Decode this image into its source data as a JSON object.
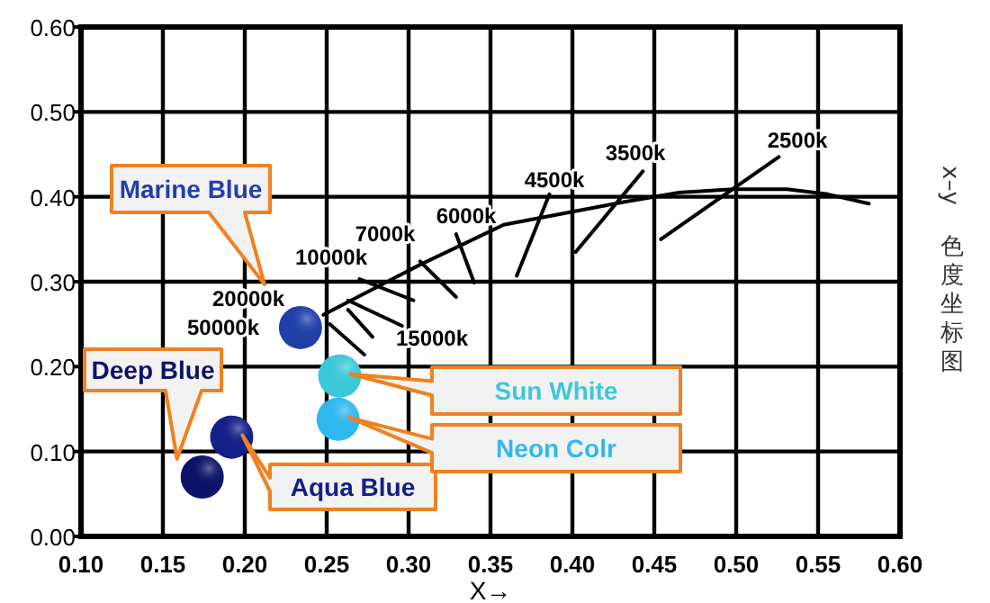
{
  "chart_data": {
    "type": "scatter",
    "xlabel": "X→",
    "xlim": [
      0.1,
      0.6
    ],
    "ylim": [
      0,
      0.6
    ],
    "xticks": [
      {
        "value": 0.1,
        "label": "0.10"
      },
      {
        "value": 0.15,
        "label": "0.15"
      },
      {
        "value": 0.2,
        "label": "0.20"
      },
      {
        "value": 0.25,
        "label": "0.25"
      },
      {
        "value": 0.3,
        "label": "0.30"
      },
      {
        "value": 0.35,
        "label": "0.35"
      },
      {
        "value": 0.4,
        "label": "0.40"
      },
      {
        "value": 0.45,
        "label": "0.45"
      },
      {
        "value": 0.5,
        "label": "0.50"
      },
      {
        "value": 0.55,
        "label": "0.55"
      },
      {
        "value": 0.6,
        "label": "0.60"
      }
    ],
    "yticks": [
      {
        "value": 0,
        "label": "0.00"
      },
      {
        "value": 0.1,
        "label": "0.10"
      },
      {
        "value": 0.2,
        "label": "0.20"
      },
      {
        "value": 0.3,
        "label": "0.30"
      },
      {
        "value": 0.4,
        "label": "0.40"
      },
      {
        "value": 0.5,
        "label": "0.50"
      },
      {
        "value": 0.6,
        "label": "0.60"
      }
    ],
    "grid": true,
    "marker": "circle",
    "series": [
      {
        "name": "Marine Blue",
        "color": "#2040a8",
        "x": [
          0.234
        ],
        "values": [
          0.246
        ]
      },
      {
        "name": "Deep Blue",
        "color": "#0c1468",
        "x": [
          0.174
        ],
        "values": [
          0.07
        ]
      },
      {
        "name": "Aqua Blue",
        "color": "#142088",
        "x": [
          0.192
        ],
        "values": [
          0.117
        ]
      },
      {
        "name": "Sun White",
        "color": "#3cc8d8",
        "x": [
          0.258
        ],
        "values": [
          0.189
        ]
      },
      {
        "name": "Neon Colr",
        "color": "#30b8f0",
        "x": [
          0.257
        ],
        "values": [
          0.138
        ]
      },
      {
        "type": "line",
        "marker": "none",
        "color": "#000000",
        "x": [
          0.248,
          0.292,
          0.307,
          0.358,
          0.432,
          0.465,
          0.498,
          0.531,
          0.556,
          0.581
        ],
        "values": [
          0.261,
          0.305,
          0.32,
          0.367,
          0.394,
          0.405,
          0.409,
          0.409,
          0.403,
          0.392
        ]
      },
      {
        "type": "line",
        "marker": "none",
        "color": "#000000",
        "x": [
          0.252,
          0.273
        ],
        "values": [
          0.25,
          0.214
        ]
      },
      {
        "type": "line",
        "marker": "none",
        "color": "#000000",
        "x": [
          0.263,
          0.278
        ],
        "values": [
          0.267,
          0.235
        ]
      },
      {
        "type": "line",
        "marker": "none",
        "color": "#000000",
        "x": [
          0.263,
          0.296
        ],
        "values": [
          0.278,
          0.248
        ]
      },
      {
        "type": "line",
        "marker": "none",
        "color": "#000000",
        "x": [
          0.27,
          0.303
        ],
        "values": [
          0.303,
          0.278
        ]
      },
      {
        "type": "line",
        "marker": "none",
        "color": "#000000",
        "x": [
          0.307,
          0.329
        ],
        "values": [
          0.324,
          0.282
        ]
      },
      {
        "type": "line",
        "marker": "none",
        "color": "#000000",
        "x": [
          0.329,
          0.34
        ],
        "values": [
          0.356,
          0.299
        ]
      },
      {
        "type": "line",
        "marker": "none",
        "color": "#000000",
        "x": [
          0.386,
          0.366
        ],
        "values": [
          0.403,
          0.307
        ]
      },
      {
        "type": "line",
        "marker": "none",
        "color": "#000000",
        "x": [
          0.443,
          0.402
        ],
        "values": [
          0.43,
          0.335
        ]
      },
      {
        "type": "line",
        "marker": "none",
        "color": "#000000",
        "x": [
          0.526,
          0.454
        ],
        "values": [
          0.447,
          0.35
        ]
      }
    ],
    "annotations": [
      "50000k",
      "20000k",
      "15000k",
      "10000k",
      "7000k",
      "6000k",
      "4500k",
      "3500k",
      "2500k",
      "x–y 色度坐标图"
    ]
  }
}
